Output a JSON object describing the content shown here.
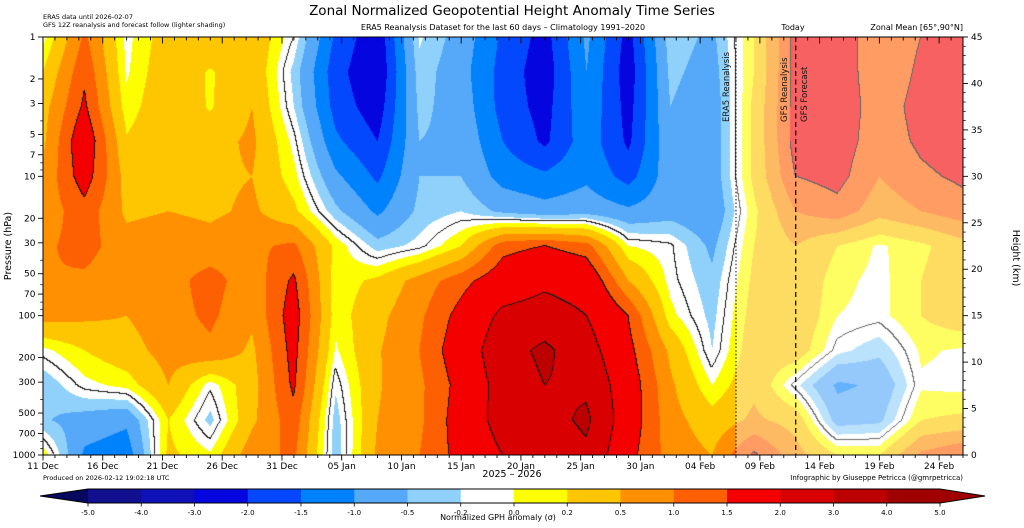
{
  "title": "Zonal Normalized Geopotential Height Anomaly Time Series",
  "header": {
    "left_line1": "ERA5 data until 2026-02-07",
    "left_line2": "GFS 12Z reanalysis and forecast follow (lighter shading)",
    "center": "ERA5 Reanalysis Dataset for the last 60 days – Climatology 1991–2020",
    "today_label": "Today",
    "right": "Zonal Mean [65°,90°N]"
  },
  "annotations": {
    "era5_line_label": "ERA5 Reanalysis",
    "gfs_reanalysis_label": "GFS Reanalysis",
    "gfs_forecast_label": "GFS Forecast",
    "era5_end_day": 58,
    "today_day": 63
  },
  "axes": {
    "left_label": "Pressure (hPa)",
    "left_tick_pressures": [
      1,
      2,
      3,
      5,
      7,
      10,
      20,
      30,
      50,
      70,
      100,
      200,
      300,
      500,
      700,
      1000
    ],
    "right_label": "Height (km)",
    "right_tick_km": [
      45,
      40,
      35,
      30,
      25,
      20,
      15,
      10,
      5,
      0
    ],
    "x_tick_days": [
      0,
      5,
      10,
      15,
      20,
      25,
      30,
      35,
      40,
      45,
      50,
      55,
      60,
      65,
      70,
      75
    ],
    "x_tick_labels": [
      "11 Dec",
      "16 Dec",
      "21 Dec",
      "26 Dec",
      "31 Dec",
      "05 Jan",
      "10 Jan",
      "15 Jan",
      "20 Jan",
      "25 Jan",
      "30 Jan",
      "04 Feb",
      "09 Feb",
      "14 Feb",
      "19 Feb",
      "24 Feb"
    ]
  },
  "footer": {
    "produced": "Produced on 2026-02-12 19:02:18 UTC",
    "years": "2025 – 2026",
    "credit": "Infographic by Giuseppe Petricca (@gmrpetricca)"
  },
  "colorbar": {
    "label": "Normalized GPH anomaly (σ)",
    "tick_labels": [
      "-5.0",
      "-4.0",
      "-3.0",
      "-2.0",
      "-1.5",
      "-1.0",
      "-0.5",
      "-0.2",
      "0.0",
      "0.2",
      "0.5",
      "1.0",
      "1.5",
      "2.0",
      "3.0",
      "4.0",
      "5.0"
    ]
  },
  "chart_data": {
    "type": "heatmap",
    "title": "Zonal Normalized Geopotential Height Anomaly Time Series",
    "xlabel": "2025 – 2026",
    "ylabel_left": "Pressure (hPa)",
    "ylabel_right": "Height (km)",
    "value_label": "Normalized GPH anomaly (σ)",
    "day_range": [
      0,
      77
    ],
    "x_start_tick": "11 Dec",
    "x_end_tick": "24 Feb",
    "pressure_range": [
      1,
      1000
    ],
    "height_km_range": [
      45,
      0
    ],
    "levels": [
      -5,
      -4,
      -3,
      -2,
      -1.5,
      -1,
      -0.5,
      -0.2,
      0.2,
      0.5,
      1,
      1.5,
      2,
      3,
      4,
      5
    ],
    "under_color": "#08085e",
    "band_colors": [
      "#0f0f8f",
      "#1010b8",
      "#0505e0",
      "#0448fd",
      "#0182fd",
      "#56a8f8",
      "#8fd1fb",
      "#ffffff",
      "#fdfe02",
      "#fec601",
      "#fe9002",
      "#fd6003",
      "#f40000",
      "#d80000",
      "#bc0000"
    ],
    "over_color": "#a00000",
    "black_contour_levels": [
      0,
      2,
      3,
      4
    ],
    "lighter_after_day": 58,
    "lighten_keep": 0.62,
    "x_days": [
      0,
      3.5,
      7,
      10.5,
      14,
      17.5,
      21,
      24.5,
      28,
      31.5,
      35,
      38.5,
      42,
      45.5,
      49,
      52.5,
      56,
      59.5,
      63,
      66.5,
      70,
      73.5,
      77
    ],
    "pressure_levels": [
      1,
      1.78,
      3.16,
      5.62,
      10,
      17.8,
      31.6,
      56.2,
      100,
      178,
      316,
      562,
      1000
    ],
    "values": [
      [
        0.1,
        1.6,
        0.1,
        0.75,
        0.9,
        0.9,
        0.0,
        -1.6,
        -2.4,
        -0.15,
        -0.7,
        -1.6,
        -2.2,
        -0.9,
        -2.2,
        -0.3,
        -0.6,
        0.5,
        2.2,
        2.4,
        1.6,
        2.0,
        2.3
      ],
      [
        0.5,
        1.9,
        0.15,
        0.85,
        0.45,
        0.9,
        -0.3,
        -1.8,
        -2.5,
        -0.3,
        -0.8,
        -1.7,
        -2.3,
        -1.0,
        -2.3,
        -0.4,
        -0.7,
        0.5,
        2.2,
        2.4,
        1.6,
        2.1,
        2.4
      ],
      [
        0.8,
        2.1,
        0.3,
        0.9,
        0.45,
        1.0,
        -0.2,
        -1.7,
        -2.3,
        -0.4,
        -0.7,
        -1.7,
        -2.2,
        -1.1,
        -2.2,
        -0.5,
        -0.8,
        0.6,
        2.2,
        2.4,
        1.7,
        2.2,
        2.4
      ],
      [
        0.9,
        2.5,
        0.55,
        0.95,
        0.8,
        1.1,
        0.1,
        -1.4,
        -2.0,
        -0.5,
        -0.6,
        -1.5,
        -2.1,
        -1.2,
        -2.1,
        -0.6,
        -0.8,
        0.6,
        2.2,
        2.3,
        1.7,
        2.1,
        2.3
      ],
      [
        1.1,
        2.3,
        0.8,
        1.0,
        0.9,
        1.0,
        0.3,
        -0.9,
        -1.6,
        -0.5,
        -0.5,
        -1.2,
        -1.4,
        -1.1,
        -1.7,
        -0.7,
        -0.8,
        0.6,
        2.0,
        2.2,
        1.5,
        1.9,
        2.1
      ],
      [
        1.2,
        1.8,
        0.9,
        1.0,
        0.9,
        1.1,
        0.6,
        -0.4,
        -1.1,
        -0.4,
        -0.2,
        -0.6,
        -0.8,
        -0.7,
        -0.9,
        -0.7,
        -0.9,
        0.4,
        1.5,
        1.8,
        1.2,
        1.5,
        1.8
      ],
      [
        1.4,
        1.7,
        1.2,
        1.3,
        1.2,
        1.4,
        1.6,
        0.4,
        -0.35,
        -0.1,
        0.5,
        1.8,
        2.0,
        1.7,
        0.2,
        0.05,
        -0.6,
        0.5,
        1.0,
        0.5,
        0.15,
        0.4,
        0.8
      ],
      [
        1.5,
        1.4,
        1.1,
        1.3,
        1.7,
        1.2,
        2.1,
        0.3,
        0.6,
        1.2,
        1.8,
        2.4,
        2.8,
        2.6,
        1.0,
        0.1,
        -0.4,
        0.6,
        0.9,
        0.3,
        0.1,
        0.5,
        0.9
      ],
      [
        1.2,
        1.1,
        1.0,
        1.3,
        1.6,
        1.1,
        2.3,
        0.3,
        0.85,
        1.4,
        2.2,
        3.2,
        3.4,
        3.0,
        2.0,
        0.3,
        -0.3,
        0.7,
        0.9,
        0.2,
        0.1,
        0.5,
        0.8
      ],
      [
        0.1,
        0.5,
        0.8,
        1.2,
        1.4,
        0.9,
        2.2,
        0.15,
        0.95,
        1.5,
        2.4,
        3.6,
        4.2,
        3.4,
        2.2,
        0.9,
        -0.2,
        0.8,
        0.8,
        -0.1,
        -0.4,
        0.25,
        0.15
      ],
      [
        -0.45,
        0.1,
        0.3,
        1.0,
        0.05,
        0.8,
        2.1,
        -0.15,
        0.95,
        1.4,
        2.2,
        3.4,
        4.0,
        3.8,
        2.4,
        1.1,
        0.2,
        0.9,
        -0.1,
        -1.1,
        -0.9,
        0.15,
        0.1
      ],
      [
        -0.45,
        -0.7,
        -0.9,
        0.5,
        -0.3,
        0.9,
        1.8,
        -0.35,
        1.0,
        1.4,
        2.3,
        3.4,
        3.6,
        4.2,
        2.4,
        1.2,
        0.7,
        1.1,
        0.8,
        -0.7,
        -0.6,
        0.5,
        0.6
      ],
      [
        0.4,
        -1.1,
        -1.3,
        0.6,
        0.25,
        1.3,
        1.6,
        -0.4,
        1.1,
        1.5,
        2.2,
        3.0,
        3.2,
        3.8,
        2.2,
        1.3,
        1.0,
        2.1,
        1.2,
        0.5,
        0.5,
        1.6,
        2.0
      ]
    ]
  }
}
